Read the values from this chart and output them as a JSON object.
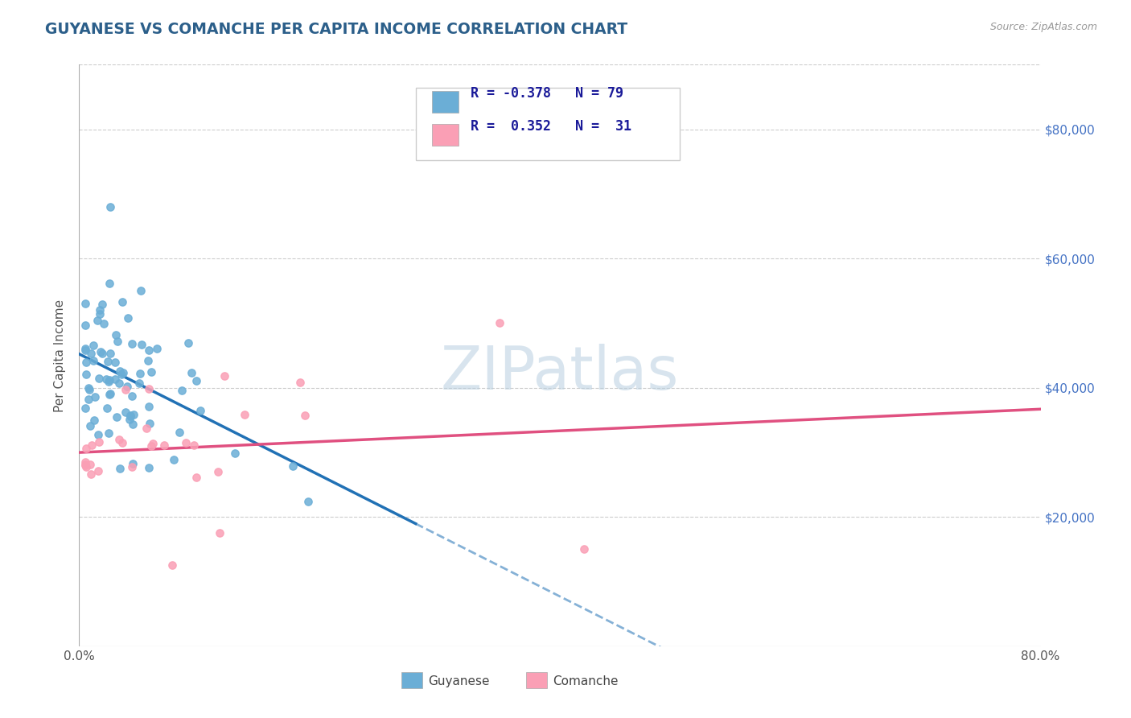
{
  "title": "GUYANESE VS COMANCHE PER CAPITA INCOME CORRELATION CHART",
  "source_text": "Source: ZipAtlas.com",
  "watermark": "ZIPatlas",
  "ylabel": "Per Capita Income",
  "xlim": [
    0.0,
    0.8
  ],
  "ylim": [
    0,
    90000
  ],
  "ytick_values": [
    20000,
    40000,
    60000,
    80000
  ],
  "ytick_labels": [
    "$20,000",
    "$40,000",
    "$60,000",
    "$80,000"
  ],
  "blue_color": "#6baed6",
  "pink_color": "#fa9fb5",
  "blue_line_color": "#2171b5",
  "pink_line_color": "#e05080",
  "title_color": "#2c5f8a",
  "right_tick_color": "#4472C4",
  "grid_color": "#cccccc",
  "background_color": "#ffffff"
}
